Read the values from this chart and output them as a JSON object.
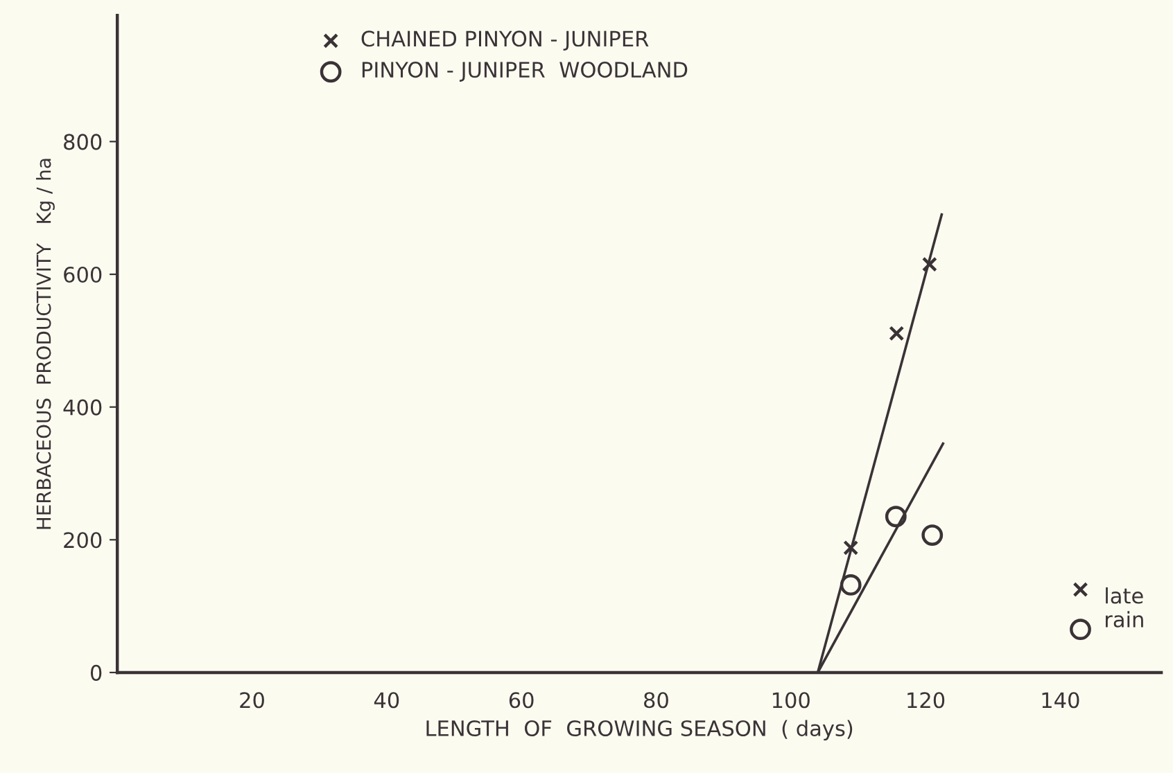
{
  "chart_data": {
    "type": "scatter",
    "xlabel": "LENGTH  OF  GROWING SEASON  ( days)",
    "ylabel": "HERBACEOUS  PRODUCTIVITY   Kg / ha",
    "xlim": [
      0,
      155
    ],
    "ylim": [
      0,
      990
    ],
    "xticks": [
      20,
      40,
      60,
      80,
      100,
      120,
      140
    ],
    "yticks": [
      0,
      200,
      400,
      600,
      800
    ],
    "grid": false,
    "legend": "top",
    "series": [
      {
        "name": "CHAINED PINYON - JUNIPER",
        "marker": "cross",
        "color": "#3a3336",
        "x": [
          108.9,
          115.7,
          120.6
        ],
        "values": [
          188,
          511,
          615
        ]
      },
      {
        "name": "PINYON - JUNIPER  WOODLAND",
        "marker": "circle",
        "color": "#3a3336",
        "x": [
          108.9,
          115.6,
          121.0
        ],
        "values": [
          132,
          235,
          207
        ]
      },
      {
        "type": "line",
        "color": "#3a3336",
        "x": [
          104,
          122.4
        ],
        "values": [
          0,
          690
        ]
      },
      {
        "type": "line",
        "color": "#3a3336",
        "x": [
          104,
          122.6
        ],
        "values": [
          0,
          345
        ]
      },
      {
        "type": "scatter",
        "marker": "cross",
        "color": "#3a3336",
        "x": [
          143
        ],
        "values": [
          125
        ]
      },
      {
        "type": "scatter",
        "marker": "circle",
        "color": "#3a3336",
        "x": [
          143
        ],
        "values": [
          65
        ]
      }
    ],
    "annotations": [
      "late\nrain"
    ]
  }
}
